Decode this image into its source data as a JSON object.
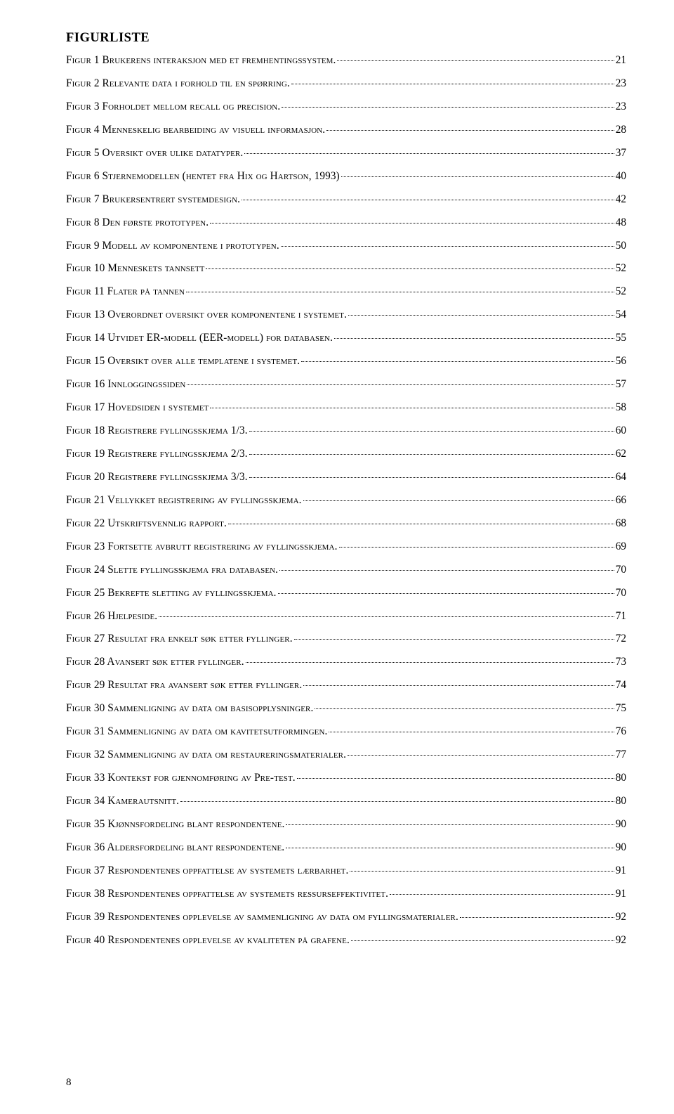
{
  "title": "FIGURLISTE",
  "footer_page": "8",
  "entries": [
    {
      "label": "Figur 1 Brukerens interaksjon med et fremhentingssystem.",
      "page": "21"
    },
    {
      "label": "Figur 2 Relevante data i forhold til en spørring.",
      "page": "23"
    },
    {
      "label": "Figur 3 Forholdet mellom recall og precision.",
      "page": "23"
    },
    {
      "label": "Figur 4 Menneskelig bearbeiding av visuell informasjon.",
      "page": "28"
    },
    {
      "label": "Figur 5 Oversikt over ulike datatyper.",
      "page": "37"
    },
    {
      "label": "Figur 6 Stjernemodellen (hentet fra Hix og Hartson, 1993)",
      "page": "40"
    },
    {
      "label": "Figur 7 Brukersentrert systemdesign.",
      "page": "42"
    },
    {
      "label": "Figur 8 Den første prototypen.",
      "page": "48"
    },
    {
      "label": "Figur 9 Modell av komponentene i prototypen.",
      "page": "50"
    },
    {
      "label": "Figur 10 Menneskets tannsett",
      "page": "52"
    },
    {
      "label": "Figur 11 Flater på tannen",
      "page": "52"
    },
    {
      "label": "Figur 13 Overordnet oversikt over komponentene i systemet.",
      "page": "54"
    },
    {
      "label": "Figur 14 Utvidet ER-modell (EER-modell) for databasen.",
      "page": "55"
    },
    {
      "label": "Figur 15 Oversikt over alle templatene i systemet.",
      "page": "56"
    },
    {
      "label": "Figur 16 Innloggingssiden",
      "page": "57"
    },
    {
      "label": "Figur 17 Hovedsiden i systemet",
      "page": "58"
    },
    {
      "label": "Figur 18 Registrere fyllingsskjema 1/3.",
      "page": "60"
    },
    {
      "label": "Figur 19 Registrere fyllingsskjema 2/3.",
      "page": "62"
    },
    {
      "label": "Figur 20 Registrere fyllingsskjema 3/3.",
      "page": "64"
    },
    {
      "label": "Figur 21 Vellykket registrering av fyllingsskjema.",
      "page": "66"
    },
    {
      "label": "Figur 22 Utskriftsvennlig rapport.",
      "page": "68"
    },
    {
      "label": "Figur 23 Fortsette avbrutt registrering av fyllingsskjema.",
      "page": "69"
    },
    {
      "label": "Figur 24 Slette fyllingsskjema fra databasen.",
      "page": "70"
    },
    {
      "label": "Figur 25 Bekrefte sletting av fyllingsskjema.",
      "page": "70"
    },
    {
      "label": "Figur 26 Hjelpeside.",
      "page": "71"
    },
    {
      "label": "Figur 27 Resultat fra enkelt søk etter fyllinger.",
      "page": "72"
    },
    {
      "label": "Figur 28 Avansert søk etter fyllinger.",
      "page": "73"
    },
    {
      "label": "Figur 29 Resultat fra avansert søk etter fyllinger.",
      "page": "74"
    },
    {
      "label": "Figur 30 Sammenligning av data om basisopplysninger.",
      "page": "75"
    },
    {
      "label": "Figur 31 Sammenligning av data om kavitetsutformingen.",
      "page": "76"
    },
    {
      "label": "Figur 32 Sammenligning av data om restaureringsmaterialer.",
      "page": "77"
    },
    {
      "label": "Figur 33 Kontekst for gjennomføring av Pre-test.",
      "page": "80"
    },
    {
      "label": "Figur 34 Kamerautsnitt.",
      "page": "80"
    },
    {
      "label": "Figur 35 Kjønnsfordeling blant respondentene.",
      "page": "90"
    },
    {
      "label": "Figur 36 Aldersfordeling blant respondentene.",
      "page": "90"
    },
    {
      "label": "Figur 37 Respondentenes oppfattelse av systemets lærbarhet.",
      "page": "91"
    },
    {
      "label": "Figur 38 Respondentenes oppfattelse av systemets ressurseffektivitet.",
      "page": "91"
    },
    {
      "label": "Figur 39 Respondentenes opplevelse av sammenligning av data om fyllingsmaterialer.",
      "page": "92"
    },
    {
      "label": "Figur 40 Respondentenes opplevelse av kvaliteten på grafene.",
      "page": "92"
    }
  ]
}
